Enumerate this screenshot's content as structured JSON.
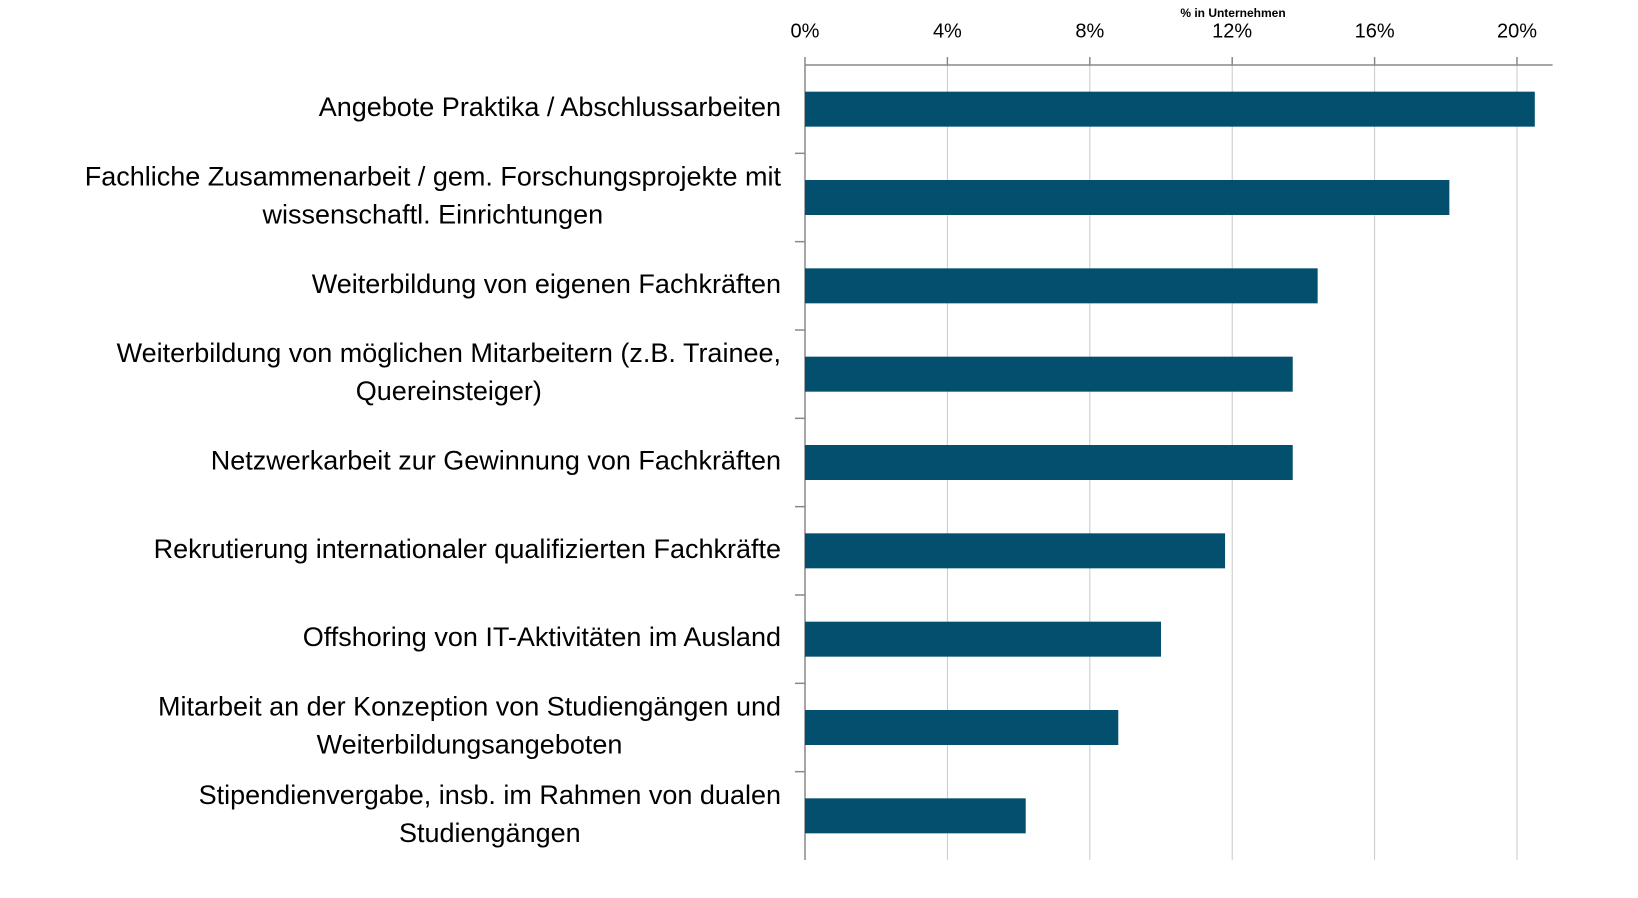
{
  "chart_data": {
    "type": "barh",
    "axis_title": "% in Unternehmen",
    "categories": [
      [
        "Angebote Praktika / Abschlussarbeiten"
      ],
      [
        "Fachliche Zusammenarbeit / gem. Forschungsprojekte mit",
        "wissenschaftl. Einrichtungen"
      ],
      [
        "Weiterbildung von eigenen Fachkräften"
      ],
      [
        "Weiterbildung von möglichen Mitarbeitern (z.B. Trainee,",
        "Quereinsteiger)"
      ],
      [
        "Netzwerkarbeit zur Gewinnung von Fachkräften"
      ],
      [
        "Rekrutierung internationaler qualifizierten Fachkräfte"
      ],
      [
        "Offshoring von IT-Aktivitäten im Ausland"
      ],
      [
        "Mitarbeit an der Konzeption von Studiengängen und",
        "Weiterbildungsangeboten"
      ],
      [
        "Stipendienvergabe, insb. im Rahmen von dualen",
        "Studiengängen"
      ]
    ],
    "values": [
      20.5,
      18.1,
      14.4,
      13.7,
      13.7,
      11.8,
      10.0,
      8.8,
      6.2
    ],
    "color": "#02506e",
    "xlim": [
      0,
      21
    ],
    "xticks": [
      {
        "value": 0,
        "label": "0%"
      },
      {
        "value": 4,
        "label": "4%"
      },
      {
        "value": 8,
        "label": "8%"
      },
      {
        "value": 12,
        "label": "12%"
      },
      {
        "value": 16,
        "label": "16%"
      },
      {
        "value": 20,
        "label": "20%"
      }
    ],
    "grid": true
  }
}
